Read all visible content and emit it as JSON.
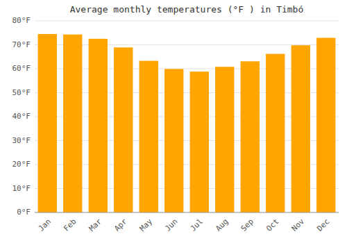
{
  "chart_data": {
    "type": "bar",
    "title": "Average monthly temperatures (°F ) in Timbó",
    "categories": [
      "Jan",
      "Feb",
      "Mar",
      "Apr",
      "May",
      "Jun",
      "Jul",
      "Aug",
      "Sep",
      "Oct",
      "Nov",
      "Dec"
    ],
    "values": [
      74.5,
      74.3,
      72.5,
      68.9,
      63.3,
      59.9,
      58.8,
      60.8,
      63.1,
      66.2,
      69.8,
      72.9
    ],
    "color": "#FFA500",
    "ylim": [
      0,
      80
    ],
    "yticks": [
      {
        "value": 0,
        "label": "0°F"
      },
      {
        "value": 10,
        "label": "10°F"
      },
      {
        "value": 20,
        "label": "20°F"
      },
      {
        "value": 30,
        "label": "30°F"
      },
      {
        "value": 40,
        "label": "40°F"
      },
      {
        "value": 50,
        "label": "50°F"
      },
      {
        "value": 60,
        "label": "60°F"
      },
      {
        "value": 70,
        "label": "70°F"
      },
      {
        "value": 80,
        "label": "80°F"
      }
    ],
    "grid": true
  }
}
